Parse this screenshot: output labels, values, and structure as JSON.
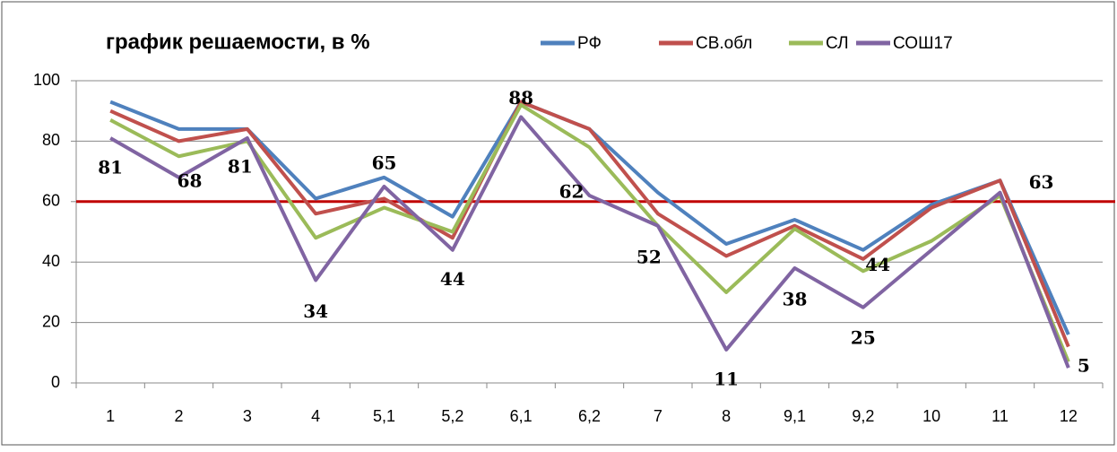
{
  "chart_data": {
    "type": "line",
    "title": "график решаемости, в %",
    "categories": [
      "1",
      "2",
      "3",
      "4",
      "5,1",
      "5,2",
      "6,1",
      "6,2",
      "7",
      "8",
      "9,1",
      "9,2",
      "10",
      "11",
      "12"
    ],
    "series": [
      {
        "name": "РФ",
        "color": "#4f81bd",
        "values": [
          93,
          84,
          84,
          61,
          68,
          55,
          93,
          84,
          63,
          46,
          54,
          44,
          59,
          67,
          16
        ]
      },
      {
        "name": "СВ.обл",
        "color": "#c0504d",
        "values": [
          90,
          80,
          84,
          56,
          61,
          48,
          93,
          84,
          56,
          42,
          52,
          41,
          58,
          67,
          12
        ]
      },
      {
        "name": "СЛ",
        "color": "#9bbb59",
        "values": [
          87,
          75,
          80,
          48,
          58,
          50,
          92,
          78,
          52,
          30,
          51,
          37,
          47,
          62,
          7
        ]
      },
      {
        "name": "СОШ17",
        "color": "#8064a2",
        "values": [
          81,
          68,
          81,
          34,
          65,
          44,
          88,
          62,
          52,
          11,
          38,
          25,
          44,
          63,
          5
        ]
      }
    ],
    "data_labels_series": 3,
    "reference_line": {
      "value": 60,
      "color": "#c00000"
    },
    "ylim": [
      0,
      100
    ],
    "yticks": [
      0,
      20,
      40,
      60,
      80,
      100
    ],
    "grid": true
  }
}
